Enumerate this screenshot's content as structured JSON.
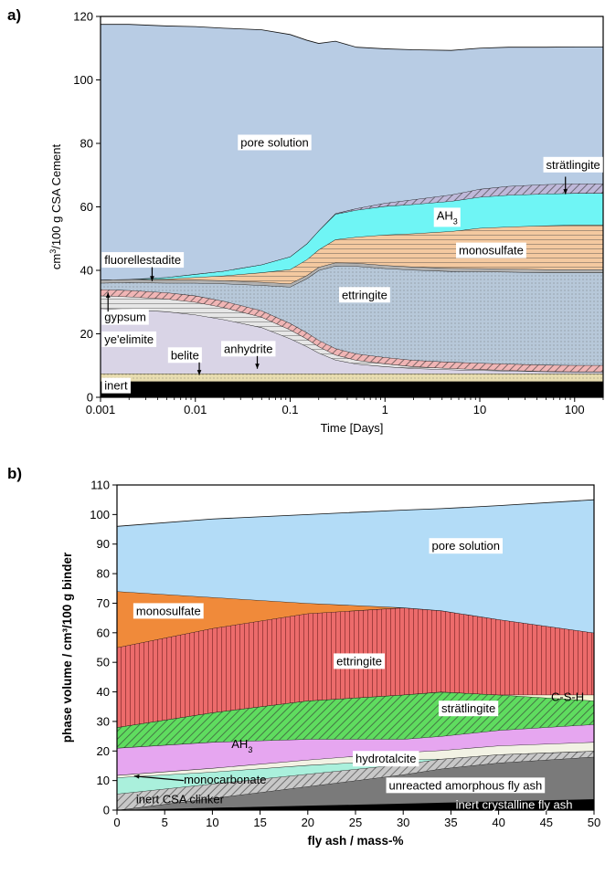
{
  "panels": [
    {
      "tag": "a)",
      "type": "area",
      "stacked": true,
      "xscale": "log",
      "xlabel": "Time [Days]",
      "ylabel_parts": [
        "cm",
        "3",
        "/100 g CSA Cement"
      ],
      "xlim": [
        0.001,
        200
      ],
      "ylim": [
        0,
        120
      ],
      "xticks": [
        0.001,
        0.01,
        0.1,
        1,
        10,
        100
      ],
      "xtick_labels": [
        "0.001",
        "0.01",
        "0.1",
        "1",
        "10",
        "100"
      ],
      "yticks": [
        0,
        20,
        40,
        60,
        80,
        100,
        120
      ],
      "ytick_labels": [
        "0",
        "20",
        "40",
        "60",
        "80",
        "100",
        "120"
      ],
      "x": [
        0.001,
        0.002,
        0.005,
        0.01,
        0.02,
        0.05,
        0.1,
        0.15,
        0.2,
        0.3,
        0.5,
        1,
        2,
        5,
        10,
        20,
        50,
        100,
        200
      ],
      "series": [
        {
          "name": "inert",
          "color": "#000000",
          "pattern": "solid",
          "values": [
            5,
            5,
            5,
            5,
            5,
            5,
            5,
            5,
            5,
            5,
            5,
            5,
            5,
            5,
            5,
            5,
            5,
            5,
            5
          ]
        },
        {
          "name": "belite",
          "color": "#e8ddb0",
          "pattern": "dots",
          "values": [
            2.5,
            2.5,
            2.5,
            2.5,
            2.5,
            2.5,
            2.5,
            2.5,
            2.5,
            2.5,
            2.5,
            2.5,
            2.5,
            2.5,
            2.5,
            2.5,
            2.5,
            2.5,
            2.5
          ]
        },
        {
          "name": "ye'elimite",
          "color": "#d9d4e6",
          "pattern": "solid",
          "values": [
            20.5,
            20.2,
            19.5,
            18.5,
            17,
            14.5,
            11,
            8.5,
            6.5,
            4.3,
            3.0,
            2.2,
            1.6,
            1.2,
            1.0,
            0.8,
            0.6,
            0.5,
            0.5
          ]
        },
        {
          "name": "anhydrite",
          "color": "#e6e6e6",
          "pattern": "hlines",
          "values": [
            4,
            4,
            4,
            4,
            3.8,
            3.3,
            2.8,
            2.4,
            2,
            1.6,
            1.2,
            0.9,
            0.6,
            0.4,
            0.3,
            0.2,
            0.1,
            0.1,
            0.1
          ]
        },
        {
          "name": "gypsum",
          "color": "#f0b5b5",
          "pattern": "diag",
          "values": [
            2,
            2,
            2,
            2,
            2,
            2,
            2,
            2,
            2,
            2,
            2,
            2,
            2,
            2,
            2,
            2,
            2,
            2,
            2
          ]
        },
        {
          "name": "ettringite",
          "color": "#b7c8d9",
          "pattern": "dots",
          "values": [
            2,
            2.5,
            3,
            4,
            5.5,
            8,
            11.5,
            17,
            22,
            26,
            27.6,
            28,
            28.4,
            28.6,
            28.8,
            29,
            29.1,
            29.2,
            29.2
          ]
        },
        {
          "name": "fluorellestadite",
          "color": "#b0b0b0",
          "pattern": "solid",
          "values": [
            1,
            1,
            1,
            1,
            1,
            1,
            1,
            1,
            1,
            1,
            1,
            1,
            1,
            1,
            1,
            1,
            1,
            1,
            1
          ]
        },
        {
          "name": "monosulfate",
          "color": "#f4c9a0",
          "pattern": "hlines",
          "values": [
            0,
            0,
            0.3,
            0.8,
            1.5,
            3,
            4.5,
            5,
            5.5,
            7.3,
            8.2,
            9.6,
            10.5,
            11.6,
            12.7,
            13.2,
            13.8,
            14,
            14
          ]
        },
        {
          "name": "AH3",
          "color": "#6ff5f5",
          "pattern": "solid",
          "values": [
            0,
            0,
            0.5,
            1,
            1.5,
            2.5,
            4,
            5,
            6,
            8,
            8.5,
            9,
            9.2,
            9.5,
            9.8,
            10,
            10,
            10,
            10
          ]
        },
        {
          "name": "strätlingite",
          "color": "#bfb8d9",
          "pattern": "diag",
          "values": [
            0,
            0,
            0,
            0,
            0,
            0,
            0,
            0,
            0,
            0.2,
            0.5,
            1.0,
            1.5,
            2.0,
            2.5,
            2.8,
            3.0,
            3.0,
            3.0
          ]
        },
        {
          "name": "pore solution",
          "color": "#b8cce4",
          "pattern": "solid",
          "values": [
            80.5,
            80.3,
            79.2,
            78,
            76.5,
            74,
            70,
            64.1,
            59,
            54.3,
            50.8,
            48.6,
            47.2,
            45.5,
            44.4,
            43.8,
            43.2,
            43.1,
            43.1
          ]
        }
      ],
      "labels": [
        {
          "text": "pore solution",
          "x": 0.03,
          "y": 79
        },
        {
          "text": "strätlingite",
          "x": 50,
          "y": 72
        },
        {
          "text": "AH",
          "sub": "3",
          "x": 3.5,
          "y": 56
        },
        {
          "text": "monosulfate",
          "x": 6,
          "y": 45
        },
        {
          "text": "fluorellestadite",
          "x": 0.0011,
          "y": 42
        },
        {
          "text": "ettringite",
          "x": 0.35,
          "y": 31
        },
        {
          "text": "gypsum",
          "x": 0.0011,
          "y": 24
        },
        {
          "text": "ye'elimite",
          "x": 0.0011,
          "y": 17
        },
        {
          "text": "belite",
          "x": 0.0055,
          "y": 12
        },
        {
          "text": "anhydrite",
          "x": 0.02,
          "y": 14
        },
        {
          "text": "inert",
          "x": 0.0011,
          "y": 2.4
        }
      ]
    },
    {
      "tag": "b)",
      "type": "area",
      "stacked": true,
      "xscale": "linear",
      "xlabel": "fly ash / mass-%",
      "ylabel": "phase volume / cm³/100 g binder",
      "xlim": [
        0,
        50
      ],
      "ylim": [
        0,
        110
      ],
      "xticks": [
        0,
        5,
        10,
        15,
        20,
        25,
        30,
        35,
        40,
        45,
        50
      ],
      "xtick_labels": [
        "0",
        "5",
        "10",
        "15",
        "20",
        "25",
        "30",
        "35",
        "40",
        "45",
        "50"
      ],
      "yticks": [
        0,
        10,
        20,
        30,
        40,
        50,
        60,
        70,
        80,
        90,
        100,
        110
      ],
      "ytick_labels": [
        "0",
        "10",
        "20",
        "30",
        "40",
        "50",
        "60",
        "70",
        "80",
        "90",
        "100",
        "110"
      ],
      "x": [
        0,
        10,
        20,
        30,
        34,
        40,
        50
      ],
      "series": [
        {
          "name": "inert crystalline fly ash",
          "color": "#000000",
          "pattern": "solid",
          "values": [
            0,
            0.8,
            1.5,
            2.2,
            2.5,
            3.0,
            3.7
          ]
        },
        {
          "name": "unreacted amorphous fly ash",
          "color": "#7a7a7a",
          "pattern": "solid",
          "values": [
            0,
            3.2,
            6.5,
            9.8,
            11.5,
            13.0,
            14.3
          ]
        },
        {
          "name": "inert CSA clinker",
          "color": "#c8c8c8",
          "pattern": "diag",
          "values": [
            5.5,
            4.9,
            4.2,
            3.5,
            3.3,
            2.8,
            2.0
          ]
        },
        {
          "name": "monocarbonate",
          "color": "#aaf0dc",
          "pattern": "solid",
          "values": [
            5.5,
            4,
            3,
            1.5,
            0,
            0,
            0
          ]
        },
        {
          "name": "hydrotalcite",
          "color": "#f2f2e4",
          "pattern": "solid",
          "values": [
            0.8,
            1.3,
            1.8,
            2.5,
            2.9,
            3.0,
            3.0
          ]
        },
        {
          "name": "AH3",
          "color": "#e6a6f0",
          "pattern": "solid",
          "values": [
            9.2,
            8.8,
            7.0,
            4.5,
            4.8,
            5.2,
            6.0
          ]
        },
        {
          "name": "strätlingite",
          "color": "#5fdc5f",
          "pattern": "diag",
          "values": [
            7,
            10,
            13,
            15,
            15,
            12,
            8
          ]
        },
        {
          "name": "C-S-H",
          "color": "#f5f5d5",
          "pattern": "solid",
          "values": [
            0,
            0,
            0,
            0,
            0,
            0,
            2
          ]
        },
        {
          "name": "ettringite",
          "color": "#ec6b6b",
          "pattern": "vlines",
          "values": [
            27,
            28.5,
            29.5,
            29.5,
            27.5,
            25.5,
            21
          ]
        },
        {
          "name": "monosulfate",
          "color": "#f08a3a",
          "pattern": "solid",
          "values": [
            19,
            10.5,
            3.5,
            0,
            0,
            0,
            0
          ]
        },
        {
          "name": "pore solution",
          "color": "#b3dcf7",
          "pattern": "solid",
          "values": [
            22,
            26.5,
            30,
            33,
            34.5,
            38.5,
            45
          ]
        }
      ],
      "labels": [
        {
          "text": "pore solution",
          "x": 33,
          "y": 88
        },
        {
          "text": "monosulfate",
          "x": 2,
          "y": 66
        },
        {
          "text": "ettringite",
          "x": 23,
          "y": 49
        },
        {
          "text": "C-S-H",
          "x": 45.5,
          "y": 37,
          "boxed": false
        },
        {
          "text": "strätlingite",
          "x": 34,
          "y": 33
        },
        {
          "text": "AH",
          "sub": "3",
          "x": 12,
          "y": 21,
          "boxed": false
        },
        {
          "text": "hydrotalcite",
          "x": 25,
          "y": 16
        },
        {
          "text": "monocarbonate",
          "x": 7,
          "y": 9,
          "boxed": false
        },
        {
          "text": "unreacted amorphous fly ash",
          "x": 28.5,
          "y": 7
        },
        {
          "text": "inert CSA clinker",
          "x": 2,
          "y": 2.3,
          "boxed": false
        },
        {
          "text": "inert crystalline fly ash",
          "x": 35.5,
          "y": 0.4,
          "boxed": false,
          "white": true
        }
      ]
    }
  ]
}
